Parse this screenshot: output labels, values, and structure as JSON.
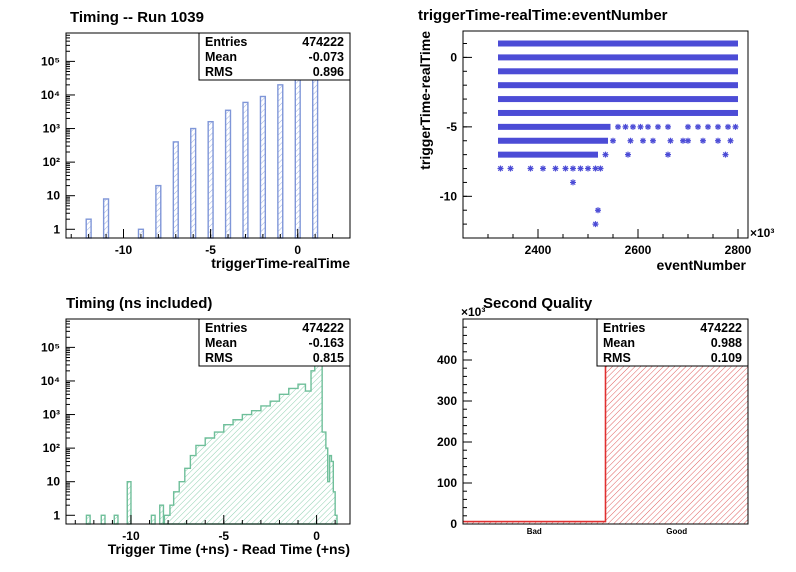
{
  "charts": [
    {
      "type": "bar",
      "title": "Timing -- Run 1039",
      "xlabel": "triggerTime-realTime",
      "ylabel": "",
      "yscale": "log",
      "xlim": [
        -13.3,
        3.0
      ],
      "ylim": [
        0.55,
        700000
      ],
      "x_ticks": [
        -10,
        -5,
        0
      ],
      "y_ticks": [
        {
          "value": 1,
          "label": "1"
        },
        {
          "value": 10,
          "label": "10"
        },
        {
          "value": 100,
          "label": "10²"
        },
        {
          "value": 1000,
          "label": "10³"
        },
        {
          "value": 10000,
          "label": "10⁴"
        },
        {
          "value": 100000,
          "label": "10⁵"
        }
      ],
      "color": "#7f96d8",
      "stats": {
        "entries_label": "Entries",
        "entries": "474222",
        "mean_label": "Mean",
        "mean": "-0.073",
        "rms_label": "RMS",
        "rms": "0.896"
      },
      "x": [
        -12,
        -11,
        -9,
        -8,
        -7,
        -6,
        -5,
        -4,
        -3,
        -2,
        -1,
        0,
        1
      ],
      "values": [
        2,
        8,
        1,
        20,
        400,
        1000,
        1600,
        3500,
        6000,
        9000,
        20000,
        500000,
        60000
      ]
    },
    {
      "type": "scatter",
      "title": "triggerTime-realTime:eventNumber",
      "xlabel": "eventNumber",
      "ylabel": "triggerTime-realTime",
      "x_multiplier": "×10³",
      "xlim": [
        2250,
        2820
      ],
      "ylim": [
        -13,
        1.9
      ],
      "x_ticks": [
        2400,
        2600,
        2800
      ],
      "y_ticks": [
        0,
        -5,
        -10
      ],
      "color": "#4c4cd6",
      "bands": [
        {
          "y": 1,
          "x_range": [
            2320,
            2800
          ]
        },
        {
          "y": 0,
          "x_range": [
            2320,
            2800
          ]
        },
        {
          "y": -1,
          "x_range": [
            2320,
            2800
          ]
        },
        {
          "y": -2,
          "x_range": [
            2320,
            2800
          ]
        },
        {
          "y": -3,
          "x_range": [
            2320,
            2800
          ]
        },
        {
          "y": -4,
          "x_range": [
            2320,
            2800
          ]
        },
        {
          "y": -5,
          "x_range": [
            2320,
            2545
          ]
        },
        {
          "y": -6,
          "x_range": [
            2320,
            2540
          ]
        },
        {
          "y": -7,
          "x_range": [
            2320,
            2520
          ]
        }
      ],
      "points": [
        {
          "x": 2560,
          "y": -5
        },
        {
          "x": 2575,
          "y": -5
        },
        {
          "x": 2590,
          "y": -5
        },
        {
          "x": 2605,
          "y": -5
        },
        {
          "x": 2620,
          "y": -5
        },
        {
          "x": 2640,
          "y": -5
        },
        {
          "x": 2660,
          "y": -5
        },
        {
          "x": 2700,
          "y": -5
        },
        {
          "x": 2720,
          "y": -5
        },
        {
          "x": 2740,
          "y": -5
        },
        {
          "x": 2760,
          "y": -5
        },
        {
          "x": 2780,
          "y": -5
        },
        {
          "x": 2795,
          "y": -5
        },
        {
          "x": 2550,
          "y": -6
        },
        {
          "x": 2585,
          "y": -6
        },
        {
          "x": 2610,
          "y": -6
        },
        {
          "x": 2630,
          "y": -6
        },
        {
          "x": 2665,
          "y": -6
        },
        {
          "x": 2690,
          "y": -6
        },
        {
          "x": 2700,
          "y": -6
        },
        {
          "x": 2730,
          "y": -6
        },
        {
          "x": 2760,
          "y": -6
        },
        {
          "x": 2785,
          "y": -6
        },
        {
          "x": 2535,
          "y": -7
        },
        {
          "x": 2580,
          "y": -7
        },
        {
          "x": 2660,
          "y": -7
        },
        {
          "x": 2775,
          "y": -7
        },
        {
          "x": 2325,
          "y": -8
        },
        {
          "x": 2345,
          "y": -8
        },
        {
          "x": 2385,
          "y": -8
        },
        {
          "x": 2410,
          "y": -8
        },
        {
          "x": 2435,
          "y": -8
        },
        {
          "x": 2455,
          "y": -8
        },
        {
          "x": 2470,
          "y": -8
        },
        {
          "x": 2485,
          "y": -8
        },
        {
          "x": 2500,
          "y": -8
        },
        {
          "x": 2515,
          "y": -8
        },
        {
          "x": 2525,
          "y": -8
        },
        {
          "x": 2470,
          "y": -9
        },
        {
          "x": 2520,
          "y": -11
        },
        {
          "x": 2515,
          "y": -12
        }
      ]
    },
    {
      "type": "area",
      "title": "Timing (ns included)",
      "xlabel": "Trigger Time (+ns) - Read Time (+ns)",
      "ylabel": "",
      "yscale": "log",
      "xlim": [
        -13.5,
        1.8
      ],
      "ylim": [
        0.55,
        700000
      ],
      "x_ticks": [
        -10,
        -5,
        0
      ],
      "y_ticks": [
        {
          "value": 1,
          "label": "1"
        },
        {
          "value": 10,
          "label": "10"
        },
        {
          "value": 100,
          "label": "10²"
        },
        {
          "value": 1000,
          "label": "10³"
        },
        {
          "value": 10000,
          "label": "10⁴"
        },
        {
          "value": 100000,
          "label": "10⁵"
        }
      ],
      "color": "#6fbf9a",
      "stats": {
        "entries_label": "Entries",
        "entries": "474222",
        "mean_label": "Mean",
        "mean": "-0.163",
        "rms_label": "RMS",
        "rms": "0.815"
      },
      "isolated_bins": [
        {
          "x0": -12.4,
          "x1": -12.2,
          "y": 1
        },
        {
          "x0": -11.6,
          "x1": -11.4,
          "y": 1
        },
        {
          "x0": -10.9,
          "x1": -10.7,
          "y": 1
        },
        {
          "x0": -10.2,
          "x1": -10.0,
          "y": 10
        },
        {
          "x0": -8.9,
          "x1": -8.7,
          "y": 1
        },
        {
          "x0": -8.45,
          "x1": -8.25,
          "y": 2
        }
      ],
      "envelope": [
        {
          "x": -8.2,
          "y": 0.55
        },
        {
          "x": -8.2,
          "y": 1
        },
        {
          "x": -7.9,
          "y": 2
        },
        {
          "x": -7.7,
          "y": 5
        },
        {
          "x": -7.4,
          "y": 10
        },
        {
          "x": -7.1,
          "y": 25
        },
        {
          "x": -6.8,
          "y": 60
        },
        {
          "x": -6.5,
          "y": 120
        },
        {
          "x": -6.0,
          "y": 200
        },
        {
          "x": -5.5,
          "y": 300
        },
        {
          "x": -5.0,
          "y": 500
        },
        {
          "x": -4.5,
          "y": 700
        },
        {
          "x": -4.0,
          "y": 1000
        },
        {
          "x": -3.5,
          "y": 1300
        },
        {
          "x": -3.0,
          "y": 1800
        },
        {
          "x": -2.5,
          "y": 2500
        },
        {
          "x": -2.0,
          "y": 4000
        },
        {
          "x": -1.5,
          "y": 6000
        },
        {
          "x": -1.0,
          "y": 8000
        },
        {
          "x": -0.6,
          "y": 5000
        },
        {
          "x": -0.3,
          "y": 20000
        },
        {
          "x": -0.1,
          "y": 200000
        },
        {
          "x": 0.0,
          "y": 500000
        },
        {
          "x": 0.15,
          "y": 30000
        },
        {
          "x": 0.3,
          "y": 300
        },
        {
          "x": 0.5,
          "y": 100
        },
        {
          "x": 0.6,
          "y": 10
        },
        {
          "x": 0.7,
          "y": 60
        },
        {
          "x": 0.8,
          "y": 40
        },
        {
          "x": 0.9,
          "y": 5
        },
        {
          "x": 1.0,
          "y": 1
        },
        {
          "x": 1.1,
          "y": 0.55
        }
      ]
    },
    {
      "type": "bar",
      "title": "Second Quality",
      "xlabel": "",
      "ylabel": "",
      "y_multiplier": "×10³",
      "categories": [
        "Bad",
        "Good"
      ],
      "values": [
        6,
        468
      ],
      "ylim": [
        0,
        500
      ],
      "y_ticks": [
        0,
        100,
        200,
        300,
        400
      ],
      "color": "#e03030",
      "stats": {
        "entries_label": "Entries",
        "entries": "474222",
        "mean_label": "Mean",
        "mean": "0.988",
        "rms_label": "RMS",
        "rms": "0.109"
      }
    }
  ]
}
